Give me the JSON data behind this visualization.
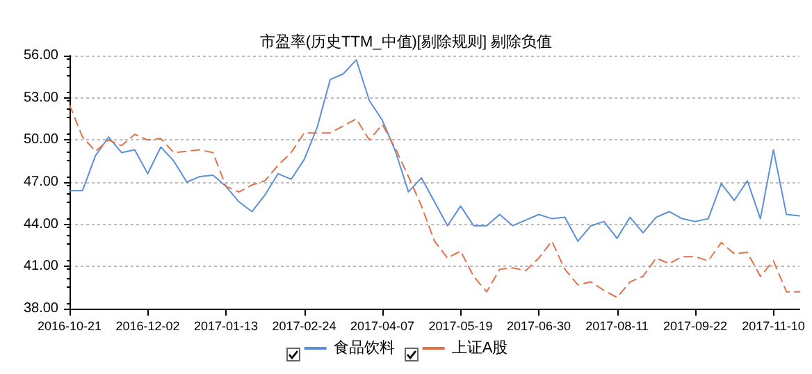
{
  "chart_data": {
    "type": "line",
    "title": "市盈率(历史TTM_中值)[剔除规则] 剔除负值",
    "categories": [
      "2016-10-21",
      null,
      null,
      null,
      null,
      null,
      "2016-12-02",
      null,
      null,
      null,
      null,
      null,
      "2017-01-13",
      null,
      null,
      null,
      null,
      null,
      "2017-02-24",
      null,
      null,
      null,
      null,
      null,
      "2017-04-07",
      null,
      null,
      null,
      null,
      null,
      "2017-05-19",
      null,
      null,
      null,
      null,
      null,
      "2017-06-30",
      null,
      null,
      null,
      null,
      null,
      "2017-08-11",
      null,
      null,
      null,
      null,
      null,
      "2017-09-22",
      null,
      null,
      null,
      null,
      null,
      "2017-11-10",
      null,
      null
    ],
    "series": [
      {
        "name": "食品饮料",
        "color": "#5b8fd6",
        "line_style": "solid",
        "values": [
          46.4,
          46.4,
          48.9,
          50.2,
          49.1,
          49.3,
          47.6,
          49.5,
          48.5,
          47.0,
          47.4,
          47.5,
          46.7,
          45.6,
          44.9,
          46.1,
          47.6,
          47.2,
          48.6,
          50.9,
          54.3,
          54.7,
          55.7,
          52.8,
          51.4,
          49.2,
          46.3,
          47.3,
          45.6,
          43.9,
          45.3,
          43.9,
          43.9,
          44.7,
          43.9,
          44.3,
          44.7,
          44.4,
          44.5,
          42.8,
          43.9,
          44.2,
          43.0,
          44.5,
          43.4,
          44.5,
          44.9,
          44.4,
          44.2,
          44.4,
          46.9,
          45.7,
          47.1,
          44.4,
          49.3,
          44.7,
          44.6
        ]
      },
      {
        "name": "上证A股",
        "color": "#e0714a",
        "line_style": "dashed",
        "values": [
          52.5,
          50.2,
          49.2,
          50.0,
          49.6,
          50.4,
          50.0,
          50.1,
          49.1,
          49.2,
          49.3,
          49.1,
          46.7,
          46.3,
          46.8,
          47.1,
          48.2,
          49.1,
          50.5,
          50.5,
          50.5,
          51.0,
          51.5,
          50.0,
          51.1,
          49.4,
          47.4,
          45.3,
          42.8,
          41.6,
          42.1,
          40.3,
          39.2,
          40.8,
          40.9,
          40.7,
          41.6,
          42.8,
          40.8,
          39.7,
          39.9,
          39.3,
          38.8,
          39.9,
          40.3,
          41.6,
          41.2,
          41.7,
          41.7,
          41.4,
          42.7,
          41.9,
          42.0,
          40.3,
          41.4,
          39.2,
          39.2
        ]
      }
    ],
    "ylim": [
      38,
      56
    ],
    "yticks": [
      {
        "value": 38,
        "label": "38.00"
      },
      {
        "value": 41,
        "label": "41.00"
      },
      {
        "value": 44,
        "label": "44.00"
      },
      {
        "value": 47,
        "label": "47.00"
      },
      {
        "value": 50,
        "label": "50.00"
      },
      {
        "value": 53,
        "label": "53.00"
      },
      {
        "value": 56,
        "label": "56.00"
      }
    ],
    "grid": "y",
    "legend": "bottom",
    "marker": "none"
  }
}
